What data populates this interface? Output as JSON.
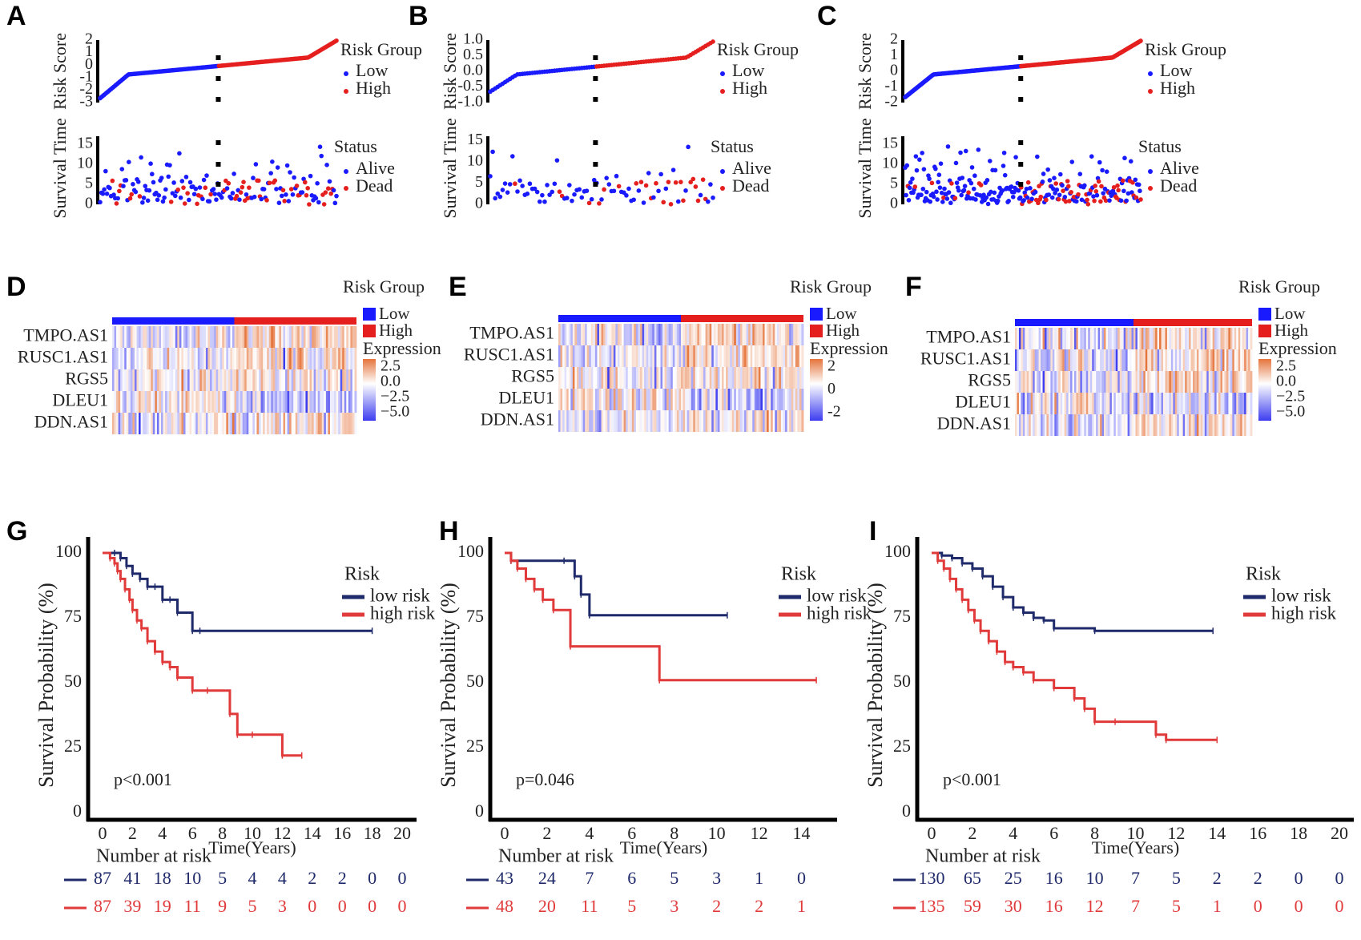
{
  "panel_letters": [
    "A",
    "B",
    "C",
    "D",
    "E",
    "F",
    "G",
    "H",
    "I"
  ],
  "colors": {
    "low": "#1a1aff",
    "high": "#e51e1e",
    "km_low": "#1f2a6b",
    "km_high": "#e03a3a",
    "axis": "#000000",
    "heat_neg": "#3d3df0",
    "heat_pos": "#e5743b"
  },
  "risk_panels": [
    {
      "letter": "A",
      "score_label": "Risk Score",
      "score_ticks": [
        "2",
        "1",
        "0",
        "-1",
        "-2",
        "-3"
      ],
      "score_range": [
        -3,
        2
      ],
      "time_label": "Survival Time",
      "time_ticks": [
        "15",
        "10",
        "5",
        "0"
      ],
      "time_range": [
        0,
        17
      ],
      "legend_title": "Risk Group",
      "legend_low": "Low",
      "legend_high": "High",
      "status_title": "Status",
      "status_alive": "Alive",
      "status_dead": "Dead",
      "n_low": 87,
      "n_high": 87
    },
    {
      "letter": "B",
      "score_label": "Risk Score",
      "score_ticks": [
        "1.0",
        "0.5",
        "0.0",
        "-0.5",
        "-1.0"
      ],
      "score_range": [
        -1,
        1
      ],
      "time_label": "Survival Time",
      "time_ticks": [
        "15",
        "10",
        "5",
        "0"
      ],
      "time_range": [
        0,
        16
      ],
      "legend_title": "Risk Group",
      "legend_low": "Low",
      "legend_high": "High",
      "status_title": "Status",
      "status_alive": "Alive",
      "status_dead": "Dead",
      "n_low": 43,
      "n_high": 48
    },
    {
      "letter": "C",
      "score_label": "Risk Score",
      "score_ticks": [
        "2",
        "1",
        "0",
        "-1",
        "-2"
      ],
      "score_range": [
        -2,
        2
      ],
      "time_label": "Survival Time",
      "time_ticks": [
        "15",
        "10",
        "5",
        "0"
      ],
      "time_range": [
        0,
        17
      ],
      "legend_title": "Risk Group",
      "legend_low": "Low",
      "legend_high": "High",
      "status_title": "Status",
      "status_alive": "Alive",
      "status_dead": "Dead",
      "n_low": 130,
      "n_high": 135
    }
  ],
  "heatmaps": [
    {
      "letter": "D",
      "genes": [
        "TMPO.AS1",
        "RUSC1.AS1",
        "RGS5",
        "DLEU1",
        "DDN.AS1"
      ],
      "legend_title": "Risk Group",
      "legend_low": "Low",
      "legend_high": "High",
      "expr_title": "Expression",
      "expr_ticks": [
        "2.5",
        "0.0",
        "−2.5",
        "−5.0"
      ]
    },
    {
      "letter": "E",
      "genes": [
        "TMPO.AS1",
        "RUSC1.AS1",
        "RGS5",
        "DLEU1",
        "DDN.AS1"
      ],
      "legend_title": "Risk Group",
      "legend_low": "Low",
      "legend_high": "High",
      "expr_title": "Expression",
      "expr_ticks": [
        "2",
        "0",
        "-2"
      ]
    },
    {
      "letter": "F",
      "genes": [
        "TMPO.AS1",
        "RUSC1.AS1",
        "RGS5",
        "DLEU1",
        "DDN.AS1"
      ],
      "legend_title": "Risk Group",
      "legend_low": "Low",
      "legend_high": "High",
      "expr_title": "Expression",
      "expr_ticks": [
        "2.5",
        "0.0",
        "−2.5",
        "−5.0"
      ]
    }
  ],
  "chart_data": [
    {
      "type": "line",
      "panel": "G",
      "ylabel": "Survival Probability (%)",
      "xlabel": "Time(Years)",
      "yticks": [
        "100",
        "75",
        "50",
        "25",
        "0"
      ],
      "ylim": [
        0,
        100
      ],
      "xticks": [
        "0",
        "2",
        "4",
        "6",
        "8",
        "10",
        "12",
        "14",
        "16",
        "18",
        "20"
      ],
      "xlim": [
        0,
        20
      ],
      "pvalue": "p<0.001",
      "legend_title": "Risk",
      "risk_table_title": "Number at risk",
      "series": [
        {
          "name": "low risk",
          "x": [
            0,
            0.8,
            1.2,
            1.6,
            2,
            2.5,
            3,
            3.5,
            4,
            4.5,
            5,
            6,
            6.5,
            18
          ],
          "y": [
            100,
            100,
            98,
            95,
            92,
            90,
            87,
            87,
            82,
            82,
            77,
            70,
            70,
            70
          ]
        },
        {
          "name": "high risk",
          "x": [
            0,
            0.5,
            0.8,
            1,
            1.2,
            1.5,
            1.8,
            2,
            2.3,
            2.6,
            3,
            3.5,
            4,
            4.5,
            5,
            6,
            7,
            8.5,
            9,
            10,
            12,
            13.3
          ],
          "y": [
            100,
            98,
            96,
            93,
            90,
            86,
            82,
            78,
            74,
            71,
            66,
            62,
            58,
            56,
            52,
            47,
            47,
            38,
            30,
            30,
            22,
            22
          ]
        }
      ],
      "risk_table": {
        "low": [
          "87",
          "41",
          "18",
          "10",
          "5",
          "4",
          "4",
          "2",
          "2",
          "0",
          "0"
        ],
        "high": [
          "87",
          "39",
          "19",
          "11",
          "9",
          "5",
          "3",
          "0",
          "0",
          "0",
          "0"
        ]
      }
    },
    {
      "type": "line",
      "panel": "H",
      "ylabel": "Survival Probability (%)",
      "xlabel": "Time(Years)",
      "yticks": [
        "100",
        "75",
        "50",
        "25",
        "0"
      ],
      "ylim": [
        0,
        100
      ],
      "xticks": [
        "0",
        "2",
        "4",
        "6",
        "8",
        "10",
        "12",
        "14"
      ],
      "xlim": [
        0,
        15
      ],
      "pvalue": "p=0.046",
      "legend_title": "Risk",
      "risk_table_title": "Number at risk",
      "series": [
        {
          "name": "low risk",
          "x": [
            0,
            0.3,
            2.8,
            3.3,
            3.6,
            4,
            10.5
          ],
          "y": [
            100,
            97,
            97,
            91,
            84,
            76,
            76
          ]
        },
        {
          "name": "high risk",
          "x": [
            0,
            0.3,
            0.6,
            1,
            1.4,
            1.8,
            2.3,
            3.1,
            7.3,
            14.7
          ],
          "y": [
            100,
            97,
            94,
            90,
            86,
            82,
            78,
            64,
            51,
            51
          ]
        }
      ],
      "risk_table": {
        "low": [
          "43",
          "24",
          "7",
          "6",
          "5",
          "3",
          "1",
          "0"
        ],
        "high": [
          "48",
          "20",
          "11",
          "5",
          "3",
          "2",
          "2",
          "1"
        ]
      }
    },
    {
      "type": "line",
      "panel": "I",
      "ylabel": "Survival Probability (%)",
      "xlabel": "Time(Years)",
      "yticks": [
        "100",
        "75",
        "50",
        "25",
        "0"
      ],
      "ylim": [
        0,
        100
      ],
      "xticks": [
        "0",
        "2",
        "4",
        "6",
        "8",
        "10",
        "12",
        "14",
        "16",
        "18",
        "20"
      ],
      "xlim": [
        0,
        20
      ],
      "pvalue": "p<0.001",
      "legend_title": "Risk",
      "risk_table_title": "Number at risk",
      "series": [
        {
          "name": "low risk",
          "x": [
            0,
            0.5,
            1,
            1.5,
            2,
            2.5,
            3,
            3.5,
            4,
            4.5,
            5,
            5.5,
            6,
            8,
            13.8
          ],
          "y": [
            100,
            99,
            98,
            96,
            94,
            91,
            87,
            83,
            79,
            77,
            75,
            74,
            71,
            70,
            70
          ]
        },
        {
          "name": "high risk",
          "x": [
            0,
            0.3,
            0.6,
            0.9,
            1.2,
            1.5,
            1.8,
            2.1,
            2.4,
            2.8,
            3.2,
            3.6,
            4,
            4.5,
            5,
            6,
            7,
            7.5,
            8,
            9,
            11,
            11.5,
            14
          ],
          "y": [
            100,
            97,
            94,
            90,
            86,
            82,
            78,
            74,
            70,
            66,
            62,
            58,
            56,
            54,
            51,
            48,
            44,
            40,
            35,
            35,
            30,
            28,
            28
          ]
        }
      ],
      "risk_table": {
        "low": [
          "130",
          "65",
          "25",
          "16",
          "10",
          "7",
          "5",
          "2",
          "2",
          "0",
          "0"
        ],
        "high": [
          "135",
          "59",
          "30",
          "16",
          "12",
          "7",
          "5",
          "1",
          "0",
          "0",
          "0"
        ]
      }
    }
  ]
}
